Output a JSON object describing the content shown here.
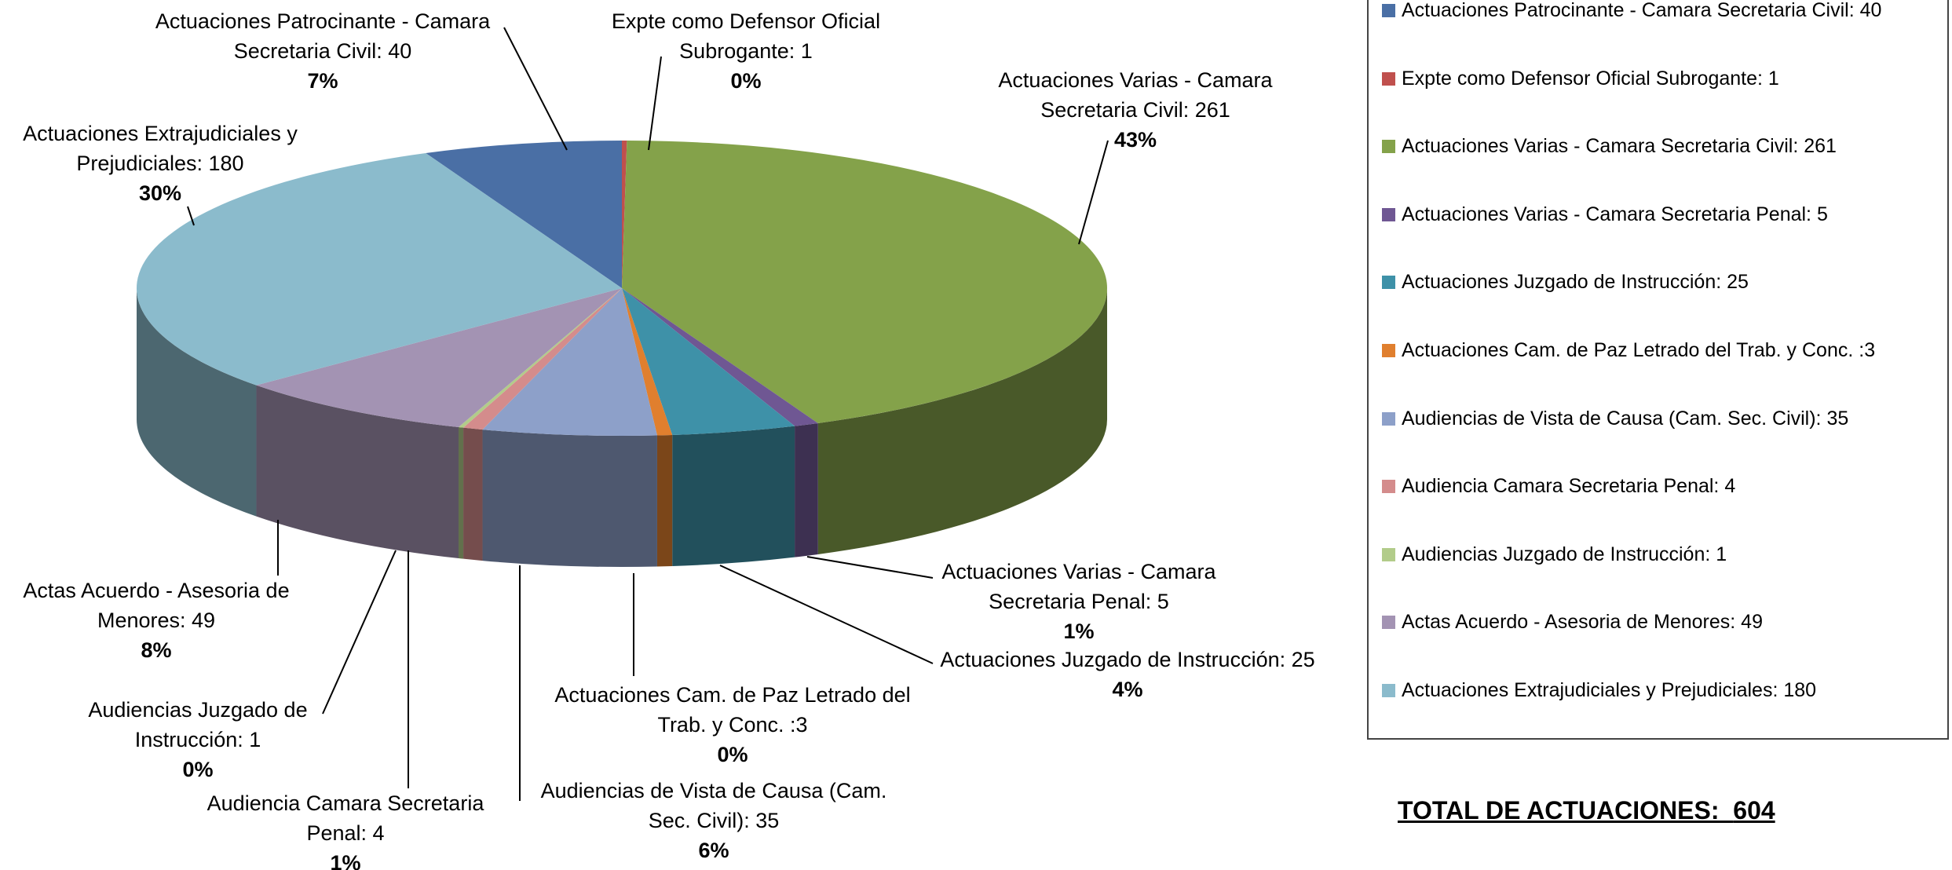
{
  "chart_data": {
    "type": "pie3d",
    "categories": [
      "Actuaciones Patrocinante - Camara Secretaria Civil: 40",
      "Expte como Defensor Oficial Subrogante: 1",
      "Actuaciones Varias - Camara Secretaria Civil: 261",
      "Actuaciones Varias - Camara Secretaria Penal: 5",
      "Actuaciones Juzgado de Instrucción: 25",
      "Actuaciones Cam. de Paz Letrado del Trab. y Conc. :3",
      "Audiencias de Vista de Causa (Cam. Sec. Civil): 35",
      "Audiencia Camara Secretaria Penal: 4",
      "Audiencias Juzgado de Instrucción: 1",
      "Actas Acuerdo - Asesoria de Menores: 49",
      "Actuaciones Extrajudiciales y Prejudiciales: 180"
    ],
    "legend": [
      "Actuaciones Patrocinante - Camara  Secretaria Civil: 40",
      "Expte como Defensor Oficial Subrogante: 1",
      "Actuaciones Varias - Camara Secretaria Civil: 261",
      "Actuaciones Varias - Camara Secretaria Penal: 5",
      "Actuaciones Juzgado de Instrucción: 25",
      "Actuaciones Cam. de Paz Letrado del Trab. y Conc. :3",
      "Audiencias de Vista de Causa (Cam. Sec. Civil): 35",
      "Audiencia Camara Secretaria Penal: 4",
      "Audiencias Juzgado de Instrucción: 1",
      "Actas Acuerdo - Asesoria de Menores: 49",
      "Actuaciones Extrajudiciales y Prejudiciales: 180"
    ],
    "values": [
      40,
      1,
      261,
      5,
      25,
      3,
      35,
      4,
      1,
      49,
      180
    ],
    "percents": [
      7,
      0,
      43,
      1,
      4,
      0,
      6,
      1,
      0,
      8,
      30
    ],
    "percent_labels": [
      "7%",
      "0%",
      "43%",
      "1%",
      "4%",
      "0%",
      "6%",
      "1%",
      "0%",
      "8%",
      "30%"
    ],
    "colors": [
      "#4a6fa5",
      "#c0504d",
      "#84a24a",
      "#6f5793",
      "#3e91a8",
      "#e07f2e",
      "#8da0c9",
      "#d48c8c",
      "#b2cc8a",
      "#a393b3",
      "#8bbbcc"
    ],
    "total_label": "TOTAL DE ACTUACIONES:",
    "total": 604
  }
}
